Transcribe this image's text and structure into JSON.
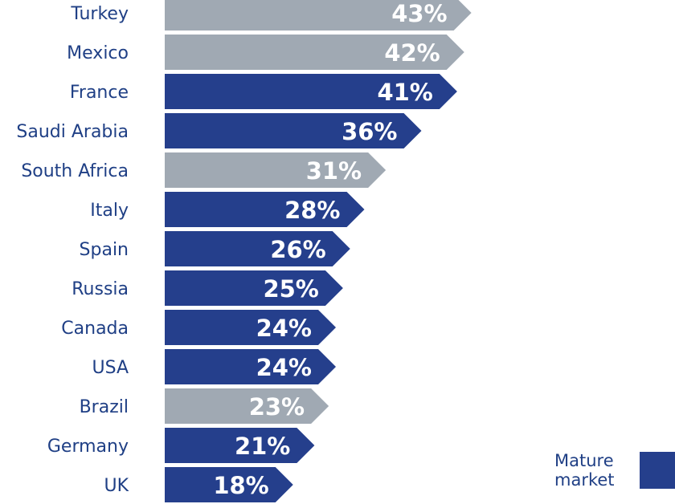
{
  "chart_data": {
    "type": "bar",
    "orientation": "horizontal",
    "title": "",
    "xlabel": "",
    "ylabel": "",
    "categories": [
      "Turkey",
      "Mexico",
      "France",
      "Saudi Arabia",
      "South Africa",
      "Italy",
      "Spain",
      "Russia",
      "Canada",
      "USA",
      "Brazil",
      "Germany",
      "UK"
    ],
    "values": [
      43,
      42,
      41,
      36,
      31,
      28,
      26,
      25,
      24,
      24,
      23,
      21,
      18
    ],
    "value_labels": [
      "43%",
      "42%",
      "41%",
      "36%",
      "31%",
      "28%",
      "26%",
      "25%",
      "24%",
      "24%",
      "23%",
      "21%",
      "18%"
    ],
    "mature": [
      false,
      false,
      true,
      true,
      false,
      true,
      true,
      true,
      true,
      true,
      false,
      true,
      true
    ],
    "unit": "%",
    "grid": false,
    "legend": {
      "position": "bottom-right",
      "entries": [
        {
          "label": "Mature market",
          "color": "#253f8c"
        }
      ]
    },
    "colors": {
      "mature": "#253f8c",
      "other": "#a0a9b3",
      "label": "#1f3f85"
    }
  }
}
